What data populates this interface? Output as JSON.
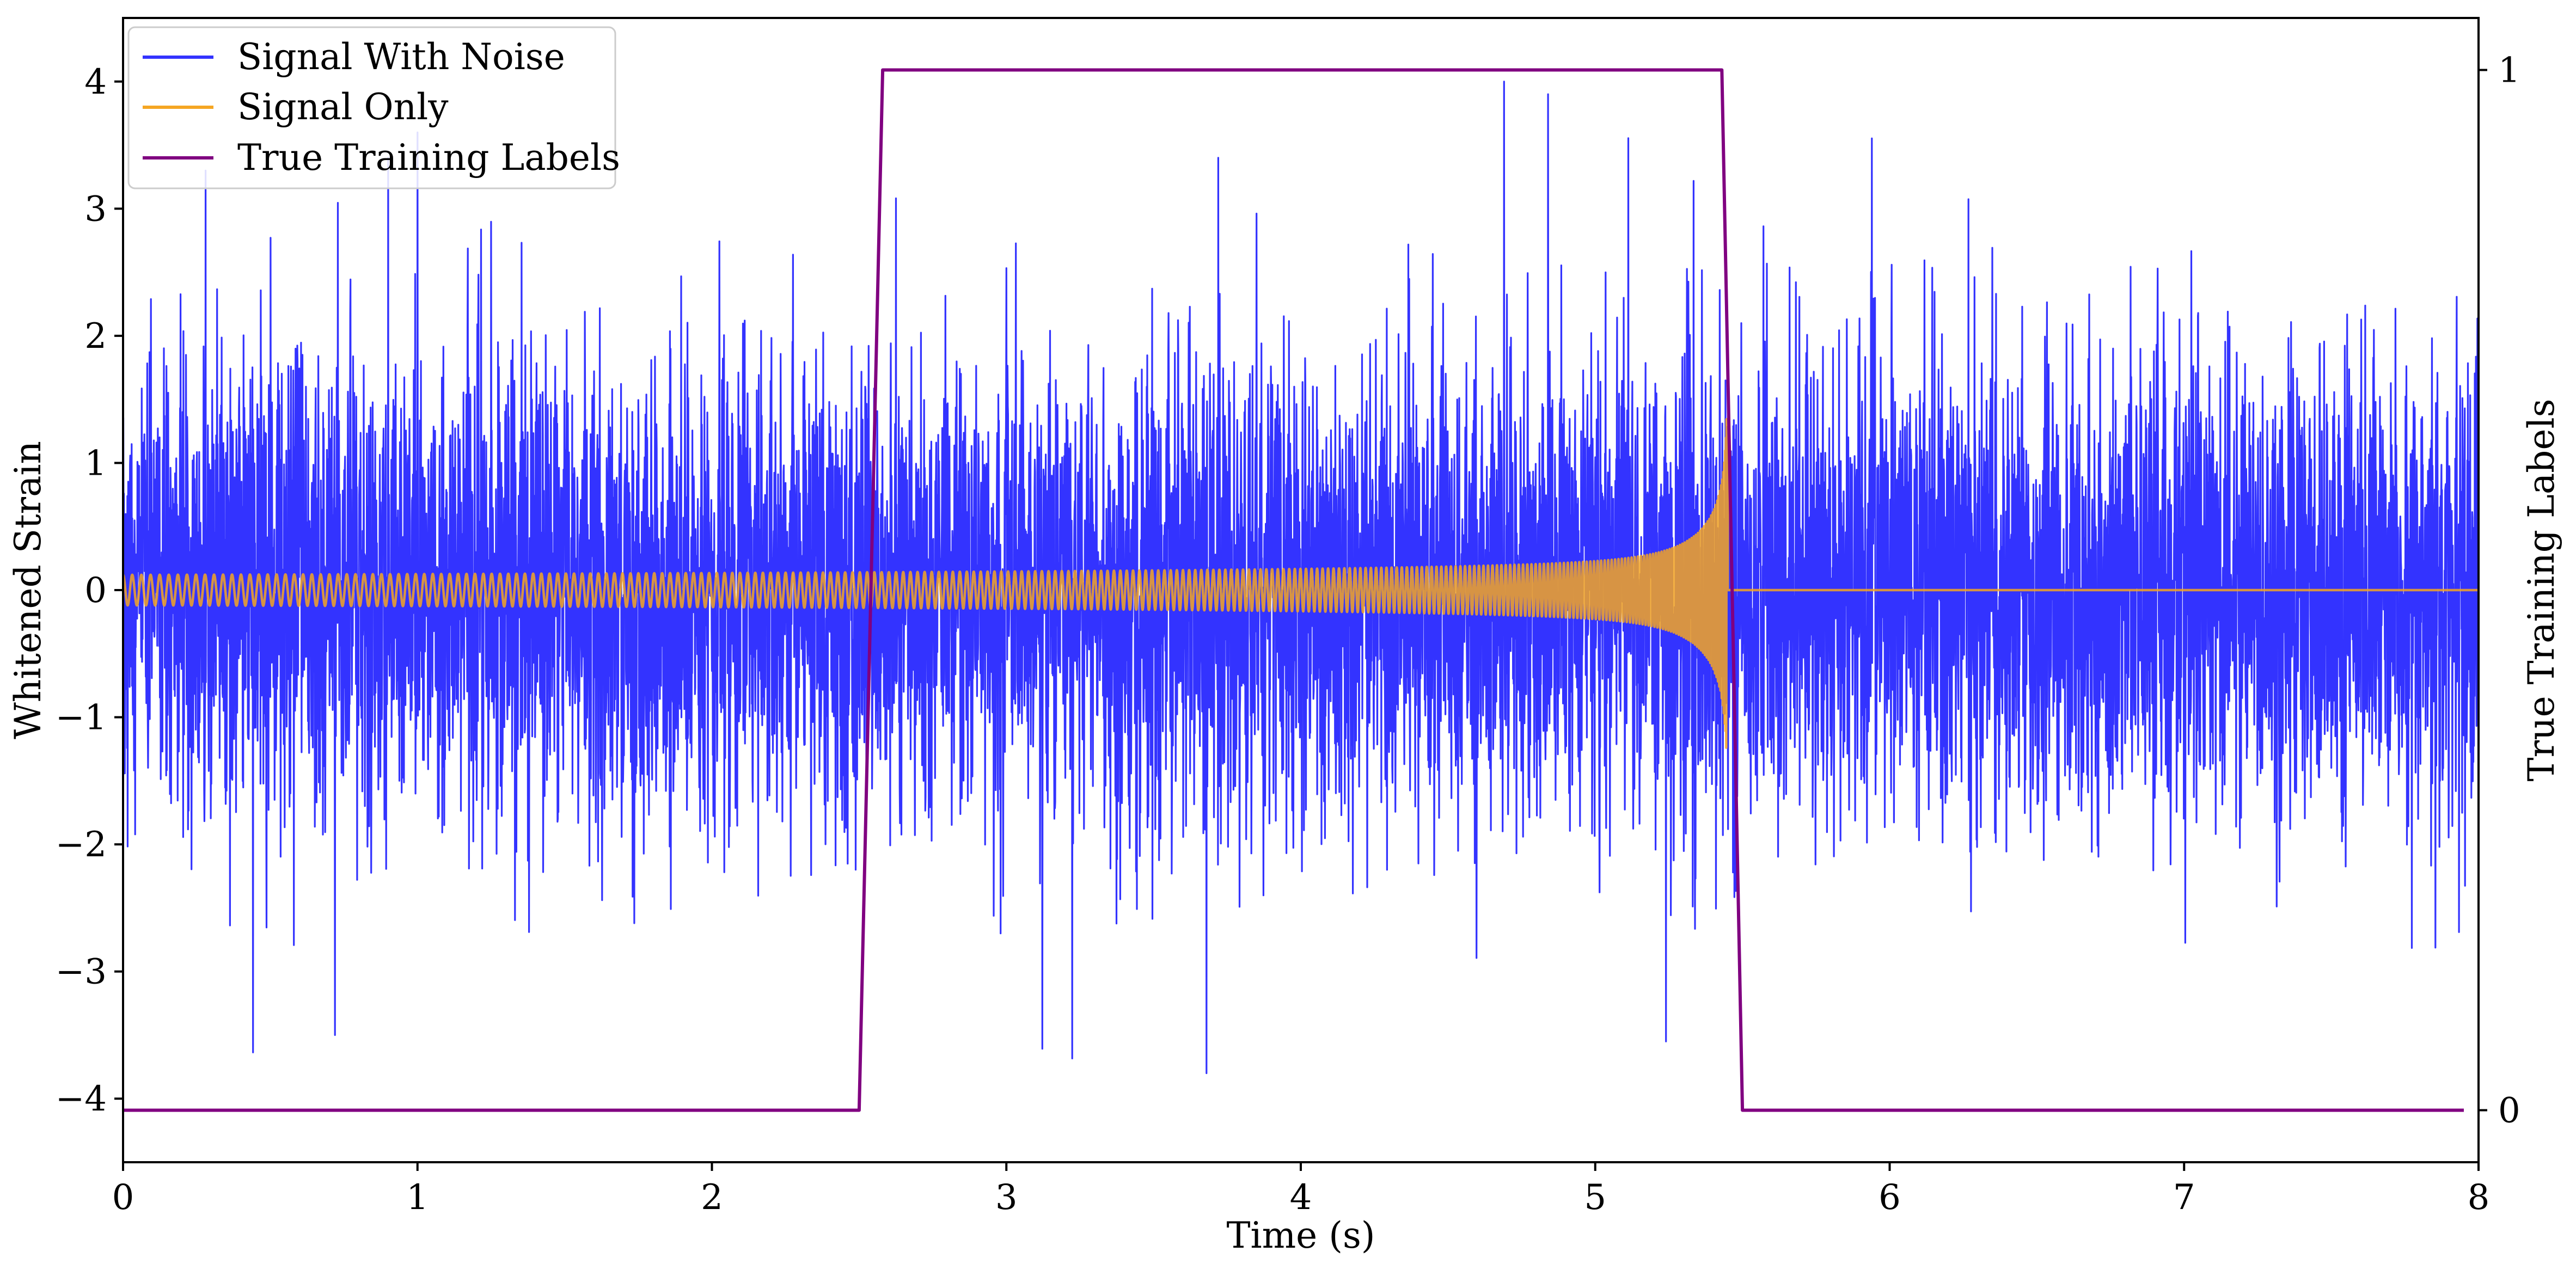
{
  "chart_data": {
    "type": "line",
    "xlabel": "Time (s)",
    "ylabel": "Whitened Strain",
    "y2label": "True Training Labels",
    "xlim": [
      0,
      8
    ],
    "ylim": [
      -4.5,
      4.5
    ],
    "y2lim": [
      -0.05,
      1.05
    ],
    "xticks": [
      "0",
      "1",
      "2",
      "3",
      "4",
      "5",
      "6",
      "7",
      "8"
    ],
    "yticks": [
      "−4",
      "−3",
      "−2",
      "−1",
      "0",
      "1",
      "2",
      "3",
      "4"
    ],
    "y2ticks": [
      "0",
      "1"
    ],
    "grid": false,
    "legend_position": "top-left",
    "series": [
      {
        "name": "Signal With Noise",
        "color": "#3333ff",
        "axis": "left",
        "noise_envelope": {
          "x": [
            0,
            8
          ],
          "amplitude": [
            2.0,
            2.0
          ],
          "sample_rate_hz": 1024
        },
        "extreme_peaks": [
          {
            "x": 0.28,
            "y": 3.3
          },
          {
            "x": 0.72,
            "y": -3.5
          },
          {
            "x": 0.9,
            "y": 3.4
          },
          {
            "x": 1.0,
            "y": 3.6
          },
          {
            "x": 3.68,
            "y": -3.8
          },
          {
            "x": 3.72,
            "y": 3.4
          },
          {
            "x": 4.69,
            "y": 4.0
          },
          {
            "x": 4.84,
            "y": 3.9
          },
          {
            "x": 5.24,
            "y": -3.55
          }
        ]
      },
      {
        "name": "Signal Only",
        "color": "#f5a623",
        "axis": "left",
        "waveform": "chirp",
        "chirp": {
          "t_start": 0,
          "t_merge": 5.45,
          "start_freq_hz": 32,
          "start_amplitude": 0.12,
          "peak_amplitude": 1.45,
          "post_merge_value": 0
        }
      },
      {
        "name": "True Training Labels",
        "color": "#800080",
        "axis": "right",
        "x": [
          0,
          2.5,
          2.58,
          5.43,
          5.5,
          7.95
        ],
        "y": [
          0,
          0,
          1,
          1,
          0,
          0
        ]
      }
    ]
  }
}
